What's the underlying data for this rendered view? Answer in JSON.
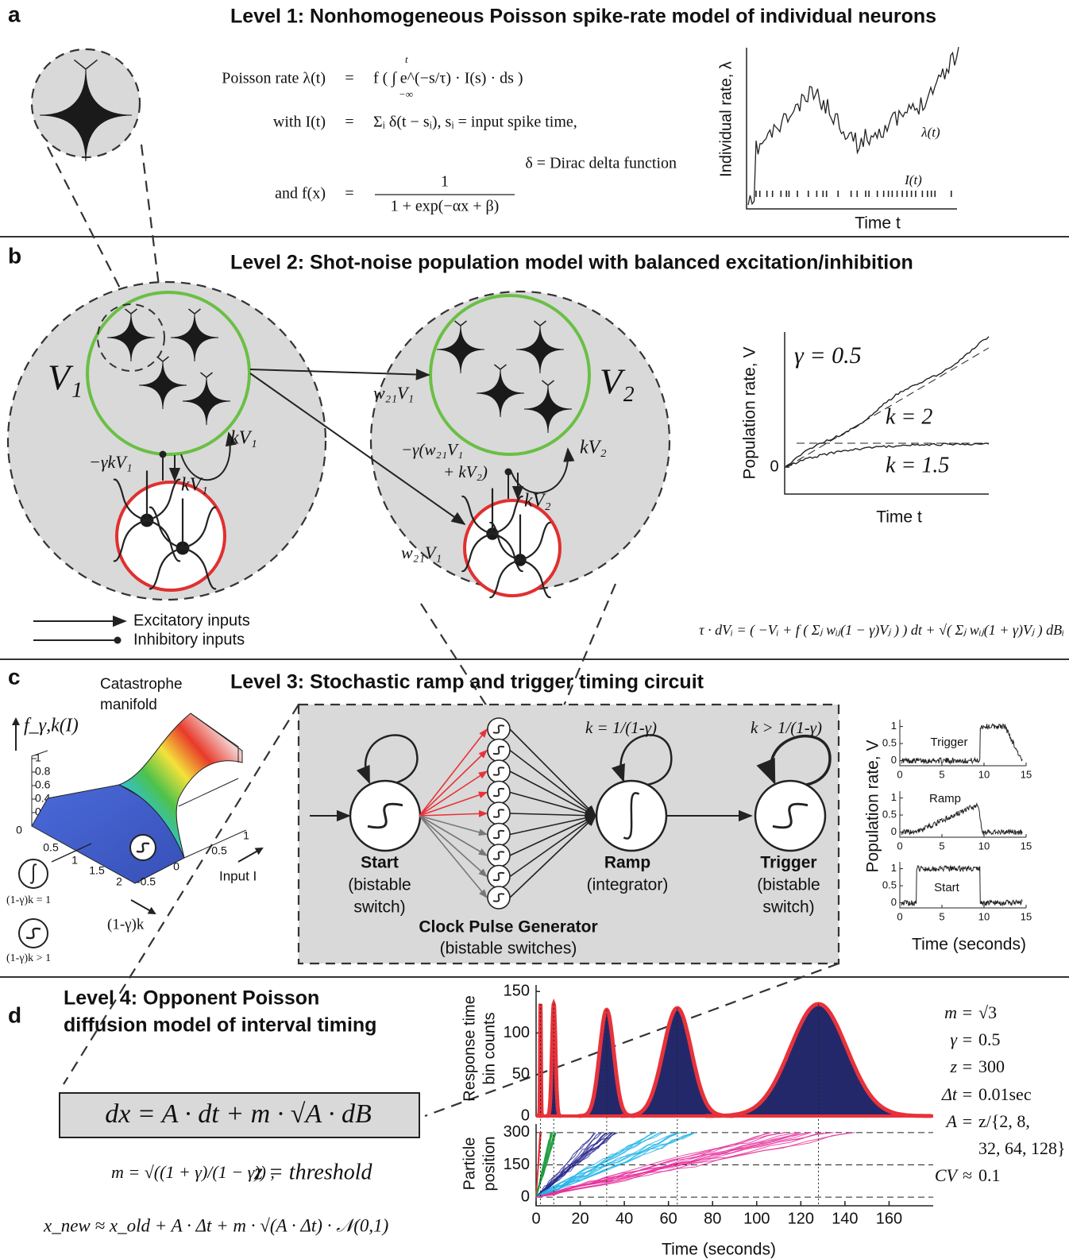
{
  "a": {
    "letter": "a",
    "title": "Level 1: Nonhomogeneous Poisson spike-rate model of individual neurons",
    "eq_sign": "=",
    "equations": [
      {
        "lhs": "Poisson rate λ(t)",
        "rhs": "f ( ∫ e^(−s/τ) · I(s) · ds )"
      },
      {
        "lhs": "with I(t)",
        "rhs": "Σᵢ δ(t − sᵢ),   sᵢ =  input spike time,"
      }
    ],
    "integral_limits": [
      "−∞",
      "t"
    ],
    "note": "δ = Dirac delta function",
    "f_def": {
      "lhs": "and f(x)",
      "numerator": "1",
      "denominator": "1 + exp(−αx + β)"
    },
    "plot": {
      "ylabel": "Individual rate, λ",
      "xlabel": "Time t",
      "rate_label": "λ(t)",
      "input_label": "I(t)"
    }
  },
  "b": {
    "letter": "b",
    "title": "Level 2: Shot-noise population model with balanced excitation/inhibition",
    "v1": "V₁",
    "v2": "V₂",
    "w21v1": "w₂₁V₁",
    "kv1": "kV₁",
    "inhib1": "−γkV₁",
    "kv2": "kV₂",
    "inhib2": [
      "−γ(w₂₁V₁",
      "+ kV₂)"
    ],
    "legend": [
      "Excitatory inputs",
      "Inhibitory inputs"
    ],
    "equation": "τ · dVᵢ = ( −Vᵢ + f ( Σⱼ wᵢⱼ(1 − γ)Vⱼ ) ) dt + √( Σⱼ wᵢⱼ(1 + γ)Vⱼ ) dBᵢ",
    "plot": {
      "ylabel": "Population rate, V",
      "xlabel": "Time t",
      "gamma": "γ = 0.5",
      "k_labels": [
        "k = 2",
        "k = 1.5"
      ],
      "ylim": [
        -0.2,
        1
      ],
      "yticks": [
        0
      ]
    }
  },
  "c": {
    "letter": "c",
    "title": "Level 3: Stochastic ramp and trigger timing circuit",
    "manifold": {
      "title": [
        "Catastrophe",
        "manifold"
      ],
      "zlabel": "f_γ,k(I)",
      "zticks": [
        0,
        0.2,
        0.4,
        0.6,
        0.8,
        1
      ],
      "k_ticks": [
        0.5,
        1,
        1.5,
        2
      ],
      "input_ticks": [
        1,
        0.5,
        0,
        -0.5
      ],
      "input_label": "Input I",
      "k_label": "(1-γ)k",
      "legend": [
        "(1-γ)k = 1",
        "(1-γ)k > 1"
      ]
    },
    "circuit": {
      "start": [
        "Start",
        "(bistable",
        "switch)"
      ],
      "ramp": [
        "Ramp",
        "(integrator)"
      ],
      "trigger": [
        "Trigger",
        "(bistable",
        "switch)"
      ],
      "clock": [
        "Clock Pulse Generator",
        "(bistable switches)"
      ],
      "ramp_condition": "k = 1/(1-γ)",
      "trigger_condition": "k > 1/(1-γ)"
    },
    "traces": {
      "labels": [
        "Trigger",
        "Ramp",
        "Start"
      ],
      "ylim": [
        -0.15,
        1.2
      ],
      "yticks": [
        0,
        0.5,
        1
      ],
      "xlim": [
        0,
        15
      ],
      "xticks": [
        0,
        5,
        10,
        15
      ],
      "ylabel": "Population rate, V",
      "xlabel": "Time (seconds)"
    }
  },
  "d": {
    "letter": "d",
    "title": [
      "Level 4: Opponent Poisson",
      "diffusion model of interval timing"
    ],
    "sde": "dx = A · dt  +  m · √A · dB",
    "m_def": "m = √((1 + γ)/(1 − γ)) ,",
    "z_def": "z = threshold",
    "update": "x_new ≈ x_old + A · Δt + m · √(A · Δt) · 𝒩(0,1)",
    "xlim": [
      0,
      180
    ],
    "xticks": [
      0,
      20,
      40,
      60,
      80,
      100,
      120,
      140,
      160
    ],
    "xlabel": "Time (seconds)",
    "histogram": {
      "ylabel": [
        "Response time",
        "bin counts"
      ],
      "ylim": [
        0,
        155
      ],
      "yticks": [
        0,
        50,
        100,
        150
      ],
      "means": [
        2,
        8,
        32,
        64,
        128
      ],
      "peaks": [
        135,
        135,
        128,
        130,
        135
      ],
      "cv": 0.1,
      "bar_color": "#23286b",
      "fit_color": "#e8323a"
    },
    "particles": {
      "ylabel": [
        "Particle",
        "position"
      ],
      "ylim": [
        -40,
        340
      ],
      "yticks": [
        0,
        150,
        300
      ],
      "colors": [
        "#e8323a",
        "#1f9e3f",
        "#2b2c8f",
        "#22b4e6",
        "#e6329c"
      ]
    },
    "params": [
      {
        "lhs": "m",
        "sign": "=",
        "rhs": "√3"
      },
      {
        "lhs": "γ",
        "sign": "=",
        "rhs": "0.5"
      },
      {
        "lhs": "z",
        "sign": "=",
        "rhs": "300"
      },
      {
        "lhs": "Δt",
        "sign": "=",
        "rhs": "0.01sec"
      },
      {
        "lhs": "A",
        "sign": "=",
        "rhs": "z/{2, 8,"
      },
      {
        "lhs": "CV",
        "sign": "≈",
        "rhs": "0.1"
      }
    ],
    "params_continuation": "32, 64, 128}"
  }
}
